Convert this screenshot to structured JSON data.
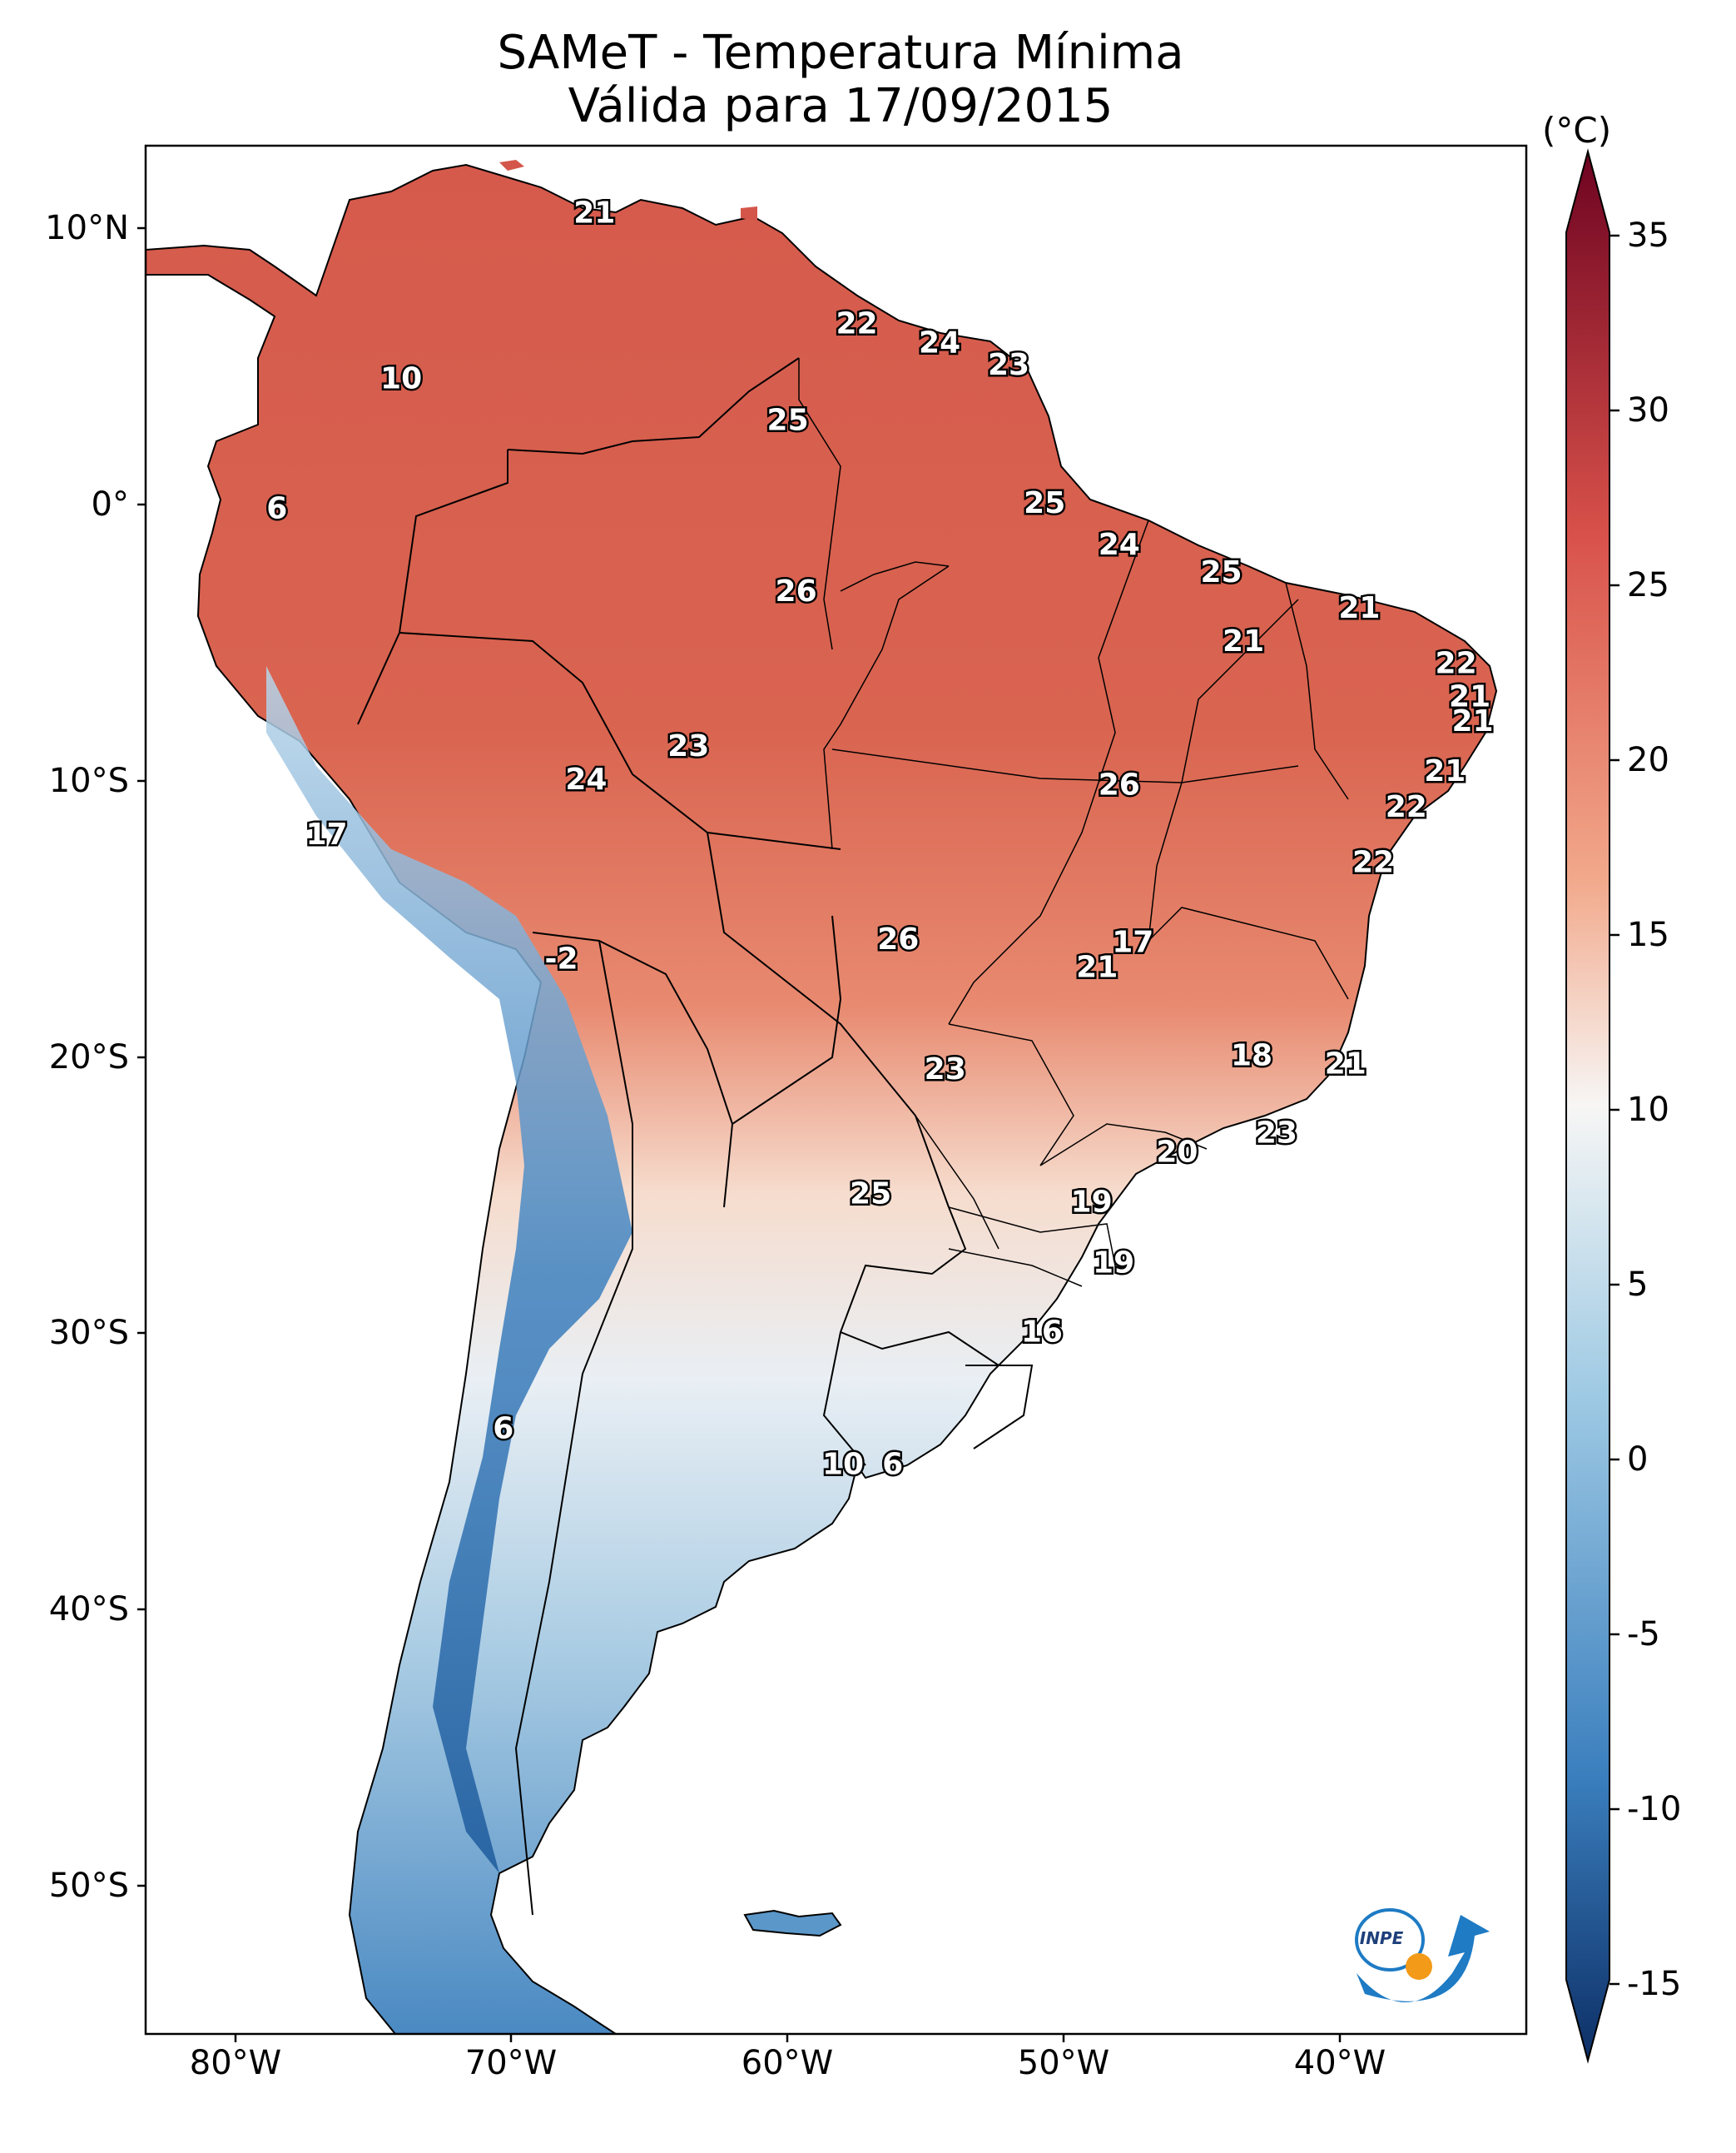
{
  "title": {
    "line1": "SAMeT - Temperatura Mínima",
    "line2": "Válida para 17/09/2015"
  },
  "axes": {
    "lat_ticks": [
      "10°N",
      "0°",
      "10°S",
      "20°S",
      "30°S",
      "40°S",
      "50°S"
    ],
    "lon_ticks": [
      "80°W",
      "70°W",
      "60°W",
      "50°W",
      "40°W"
    ]
  },
  "colorbar": {
    "unit": "(°C)",
    "ticks": [
      "35",
      "30",
      "25",
      "20",
      "15",
      "10",
      "5",
      "0",
      "-5",
      "-10",
      "-15"
    ],
    "range": [
      -15,
      35
    ],
    "colors": {
      "min": "#0d2f66",
      "low": "#3b7fbe",
      "midlow": "#9fcae4",
      "mid": "#f7f6f5",
      "midhigh": "#f2a88a",
      "high": "#d8514a",
      "max": "#6e0321"
    }
  },
  "map_values": [
    {
      "value": "21",
      "lon": -67.0,
      "lat": 10.5
    },
    {
      "value": "22",
      "lon": -57.5,
      "lat": 6.5
    },
    {
      "value": "24",
      "lon": -54.5,
      "lat": 5.8
    },
    {
      "value": "23",
      "lon": -52.0,
      "lat": 5.0
    },
    {
      "value": "10",
      "lon": -74.0,
      "lat": 4.5
    },
    {
      "value": "25",
      "lon": -60.0,
      "lat": 3.0
    },
    {
      "value": "6",
      "lon": -78.5,
      "lat": -0.2
    },
    {
      "value": "25",
      "lon": -50.7,
      "lat": 0.0
    },
    {
      "value": "24",
      "lon": -48.0,
      "lat": -1.5
    },
    {
      "value": "25",
      "lon": -44.3,
      "lat": -2.5
    },
    {
      "value": "26",
      "lon": -59.7,
      "lat": -3.2
    },
    {
      "value": "21",
      "lon": -39.3,
      "lat": -3.8
    },
    {
      "value": "21",
      "lon": -43.5,
      "lat": -5.0
    },
    {
      "value": "22",
      "lon": -35.8,
      "lat": -5.8
    },
    {
      "value": "21",
      "lon": -35.3,
      "lat": -7.0
    },
    {
      "value": "21",
      "lon": -35.2,
      "lat": -7.9
    },
    {
      "value": "23",
      "lon": -63.6,
      "lat": -8.8
    },
    {
      "value": "21",
      "lon": -36.2,
      "lat": -9.7
    },
    {
      "value": "24",
      "lon": -67.3,
      "lat": -10.0
    },
    {
      "value": "26",
      "lon": -48.0,
      "lat": -10.2
    },
    {
      "value": "22",
      "lon": -37.6,
      "lat": -11.0
    },
    {
      "value": "17",
      "lon": -76.7,
      "lat": -12.0
    },
    {
      "value": "22",
      "lon": -38.8,
      "lat": -13.0
    },
    {
      "value": "26",
      "lon": -56.0,
      "lat": -15.8
    },
    {
      "value": "17",
      "lon": -47.5,
      "lat": -15.9
    },
    {
      "value": "21",
      "lon": -48.8,
      "lat": -16.8
    },
    {
      "value": "-2",
      "lon": -68.2,
      "lat": -16.5
    },
    {
      "value": "18",
      "lon": -43.2,
      "lat": -20.0
    },
    {
      "value": "21",
      "lon": -39.8,
      "lat": -20.3
    },
    {
      "value": "23",
      "lon": -54.3,
      "lat": -20.5
    },
    {
      "value": "23",
      "lon": -42.3,
      "lat": -22.8
    },
    {
      "value": "20",
      "lon": -45.9,
      "lat": -23.5
    },
    {
      "value": "25",
      "lon": -57.0,
      "lat": -25.0
    },
    {
      "value": "19",
      "lon": -49.0,
      "lat": -25.3
    },
    {
      "value": "19",
      "lon": -48.2,
      "lat": -27.5
    },
    {
      "value": "16",
      "lon": -50.8,
      "lat": -30.0
    },
    {
      "value": "6",
      "lon": -70.3,
      "lat": -33.5
    },
    {
      "value": "10",
      "lon": -58.0,
      "lat": -34.8
    },
    {
      "value": "6",
      "lon": -56.2,
      "lat": -34.8
    }
  ],
  "logo": {
    "text": "INPE"
  }
}
